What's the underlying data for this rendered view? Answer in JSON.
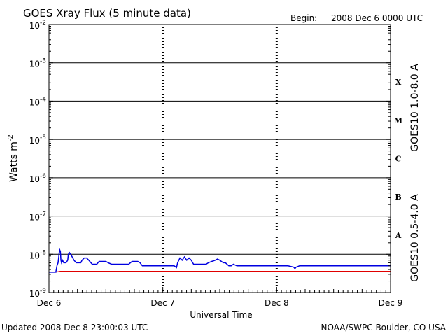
{
  "header": {
    "title": "GOES Xray Flux (5 minute data)",
    "begin_label": "Begin:",
    "begin_value": "2008 Dec 6 0000 UTC"
  },
  "footer": {
    "updated": "Updated 2008 Dec  8 23:00:03 UTC",
    "credit": "NOAA/SWPC Boulder, CO USA"
  },
  "chart_data": {
    "type": "line",
    "title": "GOES Xray Flux (5 minute data)",
    "xlabel": "Universal Time",
    "ylabel_base": "Watts m",
    "ylabel_exp": "-2",
    "x_axis": {
      "unit": "days since 2008 Dec 6 0000 UTC",
      "range": [
        0,
        3
      ],
      "ticks": [
        {
          "value": 0,
          "label": "Dec 6"
        },
        {
          "value": 1,
          "label": "Dec 7"
        },
        {
          "value": 2,
          "label": "Dec 8"
        },
        {
          "value": 3,
          "label": "Dec 9"
        }
      ]
    },
    "y_axis": {
      "scale": "log",
      "range_exp": [
        -9,
        -2
      ],
      "ticks": [
        {
          "exp": -9,
          "base": "10",
          "sup": "-9"
        },
        {
          "exp": -8,
          "base": "10",
          "sup": "-8"
        },
        {
          "exp": -7,
          "base": "10",
          "sup": "-7"
        },
        {
          "exp": -6,
          "base": "10",
          "sup": "-6"
        },
        {
          "exp": -5,
          "base": "10",
          "sup": "-5"
        },
        {
          "exp": -4,
          "base": "10",
          "sup": "-4"
        },
        {
          "exp": -3,
          "base": "10",
          "sup": "-3"
        },
        {
          "exp": -2,
          "base": "10",
          "sup": "-2"
        }
      ]
    },
    "flare_classes": [
      {
        "label": "A",
        "exp": -7.5
      },
      {
        "label": "B",
        "exp": -6.5
      },
      {
        "label": "C",
        "exp": -5.5
      },
      {
        "label": "M",
        "exp": -4.5
      },
      {
        "label": "X",
        "exp": -3.5
      }
    ],
    "grid": {
      "horizontal": "solid at each decade from 1e-8 to 1e-3",
      "vertical": "dashed at day boundaries"
    },
    "legend": "right side, vertical",
    "series": [
      {
        "name": "GOES10 1.0-8.0 A",
        "color": "#e00000",
        "points": [
          [
            0.0,
            3.4e-09
          ],
          [
            0.06,
            3.4e-09
          ],
          [
            0.1,
            3.6e-09
          ],
          [
            0.5,
            3.6e-09
          ],
          [
            1.0,
            3.6e-09
          ],
          [
            1.5,
            3.6e-09
          ],
          [
            2.0,
            3.6e-09
          ],
          [
            2.5,
            3.6e-09
          ],
          [
            3.0,
            3.6e-09
          ]
        ]
      },
      {
        "name": "GOES10 0.5-4.0 A",
        "color": "#0000e0",
        "points": [
          [
            0.0,
            3.4e-09
          ],
          [
            0.06,
            3.4e-09
          ],
          [
            0.07,
            5e-09
          ],
          [
            0.08,
            6e-09
          ],
          [
            0.085,
            8e-09
          ],
          [
            0.09,
            1.1e-08
          ],
          [
            0.095,
            1.3e-08
          ],
          [
            0.1,
            1.2e-08
          ],
          [
            0.105,
            7e-09
          ],
          [
            0.11,
            6e-09
          ],
          [
            0.12,
            7e-09
          ],
          [
            0.13,
            6e-09
          ],
          [
            0.15,
            6e-09
          ],
          [
            0.165,
            7e-09
          ],
          [
            0.17,
            1e-08
          ],
          [
            0.18,
            1.1e-08
          ],
          [
            0.19,
            1e-08
          ],
          [
            0.2,
            9e-09
          ],
          [
            0.22,
            7e-09
          ],
          [
            0.24,
            6e-09
          ],
          [
            0.26,
            6e-09
          ],
          [
            0.28,
            6e-09
          ],
          [
            0.29,
            7e-09
          ],
          [
            0.31,
            8e-09
          ],
          [
            0.33,
            8e-09
          ],
          [
            0.35,
            7e-09
          ],
          [
            0.38,
            5.5e-09
          ],
          [
            0.42,
            5.5e-09
          ],
          [
            0.44,
            6.5e-09
          ],
          [
            0.47,
            6.5e-09
          ],
          [
            0.5,
            6.5e-09
          ],
          [
            0.52,
            6e-09
          ],
          [
            0.55,
            5.5e-09
          ],
          [
            0.6,
            5.5e-09
          ],
          [
            0.65,
            5.5e-09
          ],
          [
            0.7,
            5.5e-09
          ],
          [
            0.73,
            6.5e-09
          ],
          [
            0.76,
            6.5e-09
          ],
          [
            0.78,
            6.5e-09
          ],
          [
            0.8,
            6e-09
          ],
          [
            0.82,
            5e-09
          ],
          [
            0.9,
            5e-09
          ],
          [
            1.0,
            5e-09
          ],
          [
            1.1,
            5e-09
          ],
          [
            1.12,
            4.5e-09
          ],
          [
            1.13,
            6e-09
          ],
          [
            1.15,
            8e-09
          ],
          [
            1.17,
            7e-09
          ],
          [
            1.19,
            8.5e-09
          ],
          [
            1.21,
            7e-09
          ],
          [
            1.23,
            8e-09
          ],
          [
            1.25,
            7e-09
          ],
          [
            1.27,
            5.5e-09
          ],
          [
            1.3,
            5.5e-09
          ],
          [
            1.35,
            5.5e-09
          ],
          [
            1.38,
            5.5e-09
          ],
          [
            1.4,
            6e-09
          ],
          [
            1.43,
            6.5e-09
          ],
          [
            1.46,
            7e-09
          ],
          [
            1.48,
            7.5e-09
          ],
          [
            1.5,
            7e-09
          ],
          [
            1.53,
            6e-09
          ],
          [
            1.55,
            6e-09
          ],
          [
            1.58,
            5e-09
          ],
          [
            1.6,
            5e-09
          ],
          [
            1.62,
            5.5e-09
          ],
          [
            1.65,
            5e-09
          ],
          [
            1.7,
            5e-09
          ],
          [
            1.75,
            5e-09
          ],
          [
            1.8,
            5e-09
          ],
          [
            1.85,
            5e-09
          ],
          [
            1.9,
            5e-09
          ],
          [
            1.95,
            5e-09
          ],
          [
            2.0,
            5e-09
          ],
          [
            2.1,
            5e-09
          ],
          [
            2.15,
            4.6e-09
          ],
          [
            2.16,
            4.2e-09
          ],
          [
            2.17,
            4.6e-09
          ],
          [
            2.2,
            5e-09
          ],
          [
            2.3,
            5e-09
          ],
          [
            2.4,
            5e-09
          ],
          [
            2.5,
            5e-09
          ],
          [
            2.6,
            5e-09
          ],
          [
            2.7,
            5e-09
          ],
          [
            2.8,
            5e-09
          ],
          [
            2.9,
            5e-09
          ],
          [
            3.0,
            5e-09
          ]
        ]
      }
    ]
  }
}
